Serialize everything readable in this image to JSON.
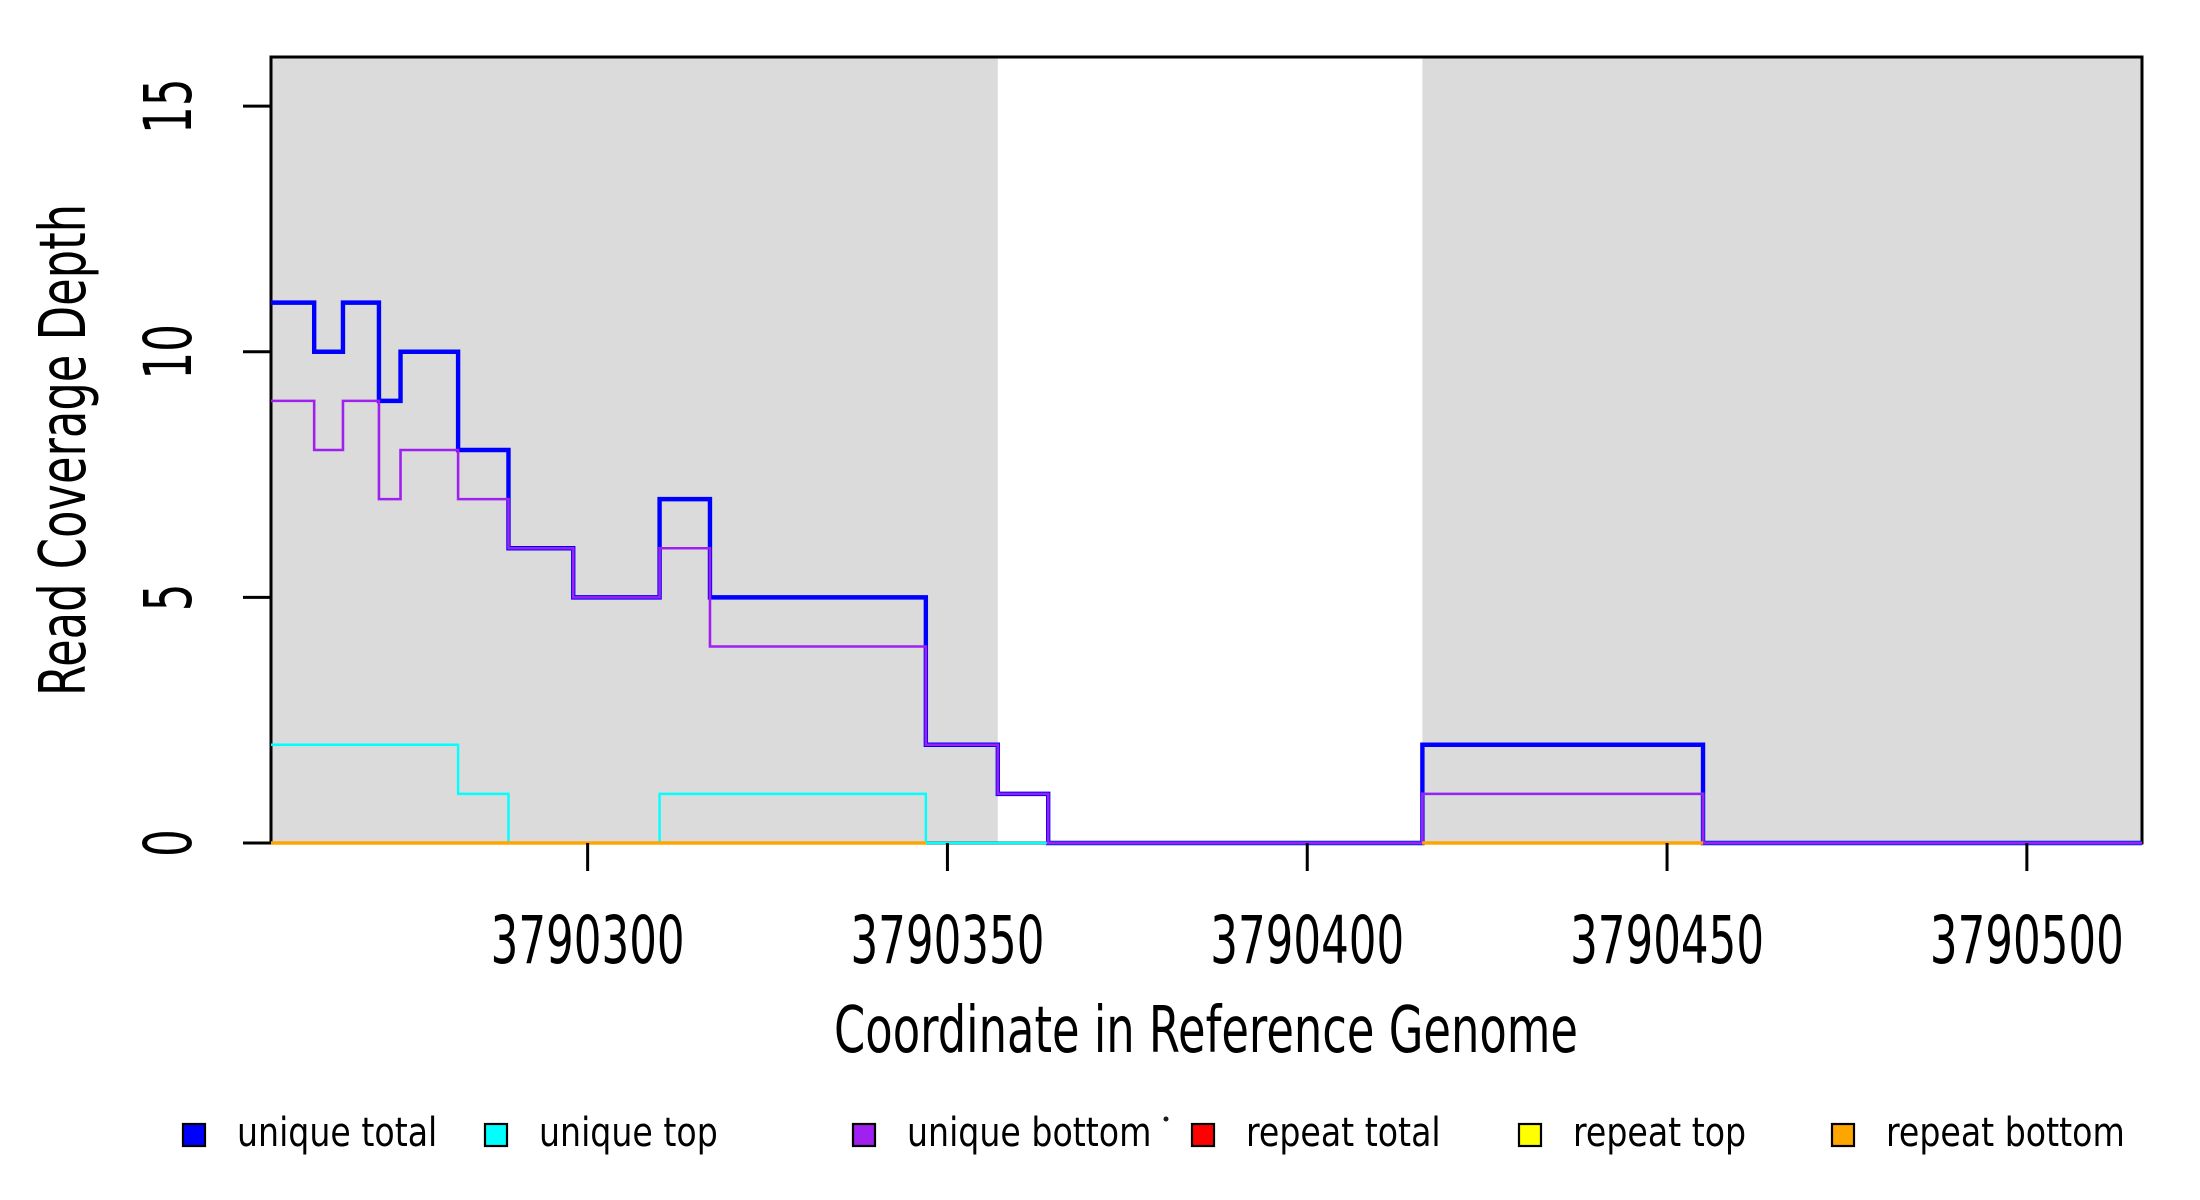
{
  "figure": {
    "background": "#FFFFFF",
    "axis_color": "#000000"
  },
  "chart_data": {
    "type": "line",
    "subtype": "step-coverage-plot",
    "title": "",
    "xlabel": "Coordinate in Reference Genome",
    "ylabel": "Read Coverage Depth",
    "xlim": [
      3790256,
      3790516
    ],
    "ylim": [
      0,
      16
    ],
    "grid": false,
    "legend_position": "bottom",
    "x_ticks": [
      {
        "value": 3790300,
        "label": "3790300"
      },
      {
        "value": 3790350,
        "label": "3790350"
      },
      {
        "value": 3790400,
        "label": "3790400"
      },
      {
        "value": 3790450,
        "label": "3790450"
      },
      {
        "value": 3790500,
        "label": "3790500"
      }
    ],
    "y_ticks": [
      {
        "value": 0,
        "label": "0"
      },
      {
        "value": 5,
        "label": "5"
      },
      {
        "value": 10,
        "label": "10"
      },
      {
        "value": 15,
        "label": "15"
      }
    ],
    "shaded_regions": [
      {
        "name": "repeat-region-1",
        "x0": 3790256,
        "x1": 3790357,
        "color": "#DBDBDB"
      },
      {
        "name": "repeat-region-2",
        "x0": 3790416,
        "x1": 3790516,
        "color": "#DBDBDB"
      }
    ],
    "series": [
      {
        "name": "unique total",
        "color": "#0000FF",
        "line_width": 4.4,
        "segments": [
          {
            "boundaries": [
              3790256,
              3790262,
              3790266,
              3790271,
              3790274,
              3790282,
              3790289,
              3790298,
              3790310,
              3790317,
              3790347,
              3790357,
              3790364,
              3790416,
              3790455,
              3790516
            ],
            "values": [
              11,
              10,
              11,
              9,
              10,
              8,
              6,
              5,
              7,
              5,
              2,
              1,
              0,
              2,
              0
            ]
          }
        ]
      },
      {
        "name": "unique top",
        "color": "#00FFFF",
        "line_width": 2.4,
        "segments": [
          {
            "boundaries": [
              3790256,
              3790262,
              3790266,
              3790271,
              3790274,
              3790282,
              3790289,
              3790298,
              3790310,
              3790317,
              3790347,
              3790357,
              3790364,
              3790416,
              3790455,
              3790516
            ],
            "values": [
              2,
              2,
              2,
              2,
              2,
              1,
              0,
              0,
              1,
              1,
              0,
              0,
              0,
              1,
              0
            ]
          }
        ]
      },
      {
        "name": "unique bottom",
        "color": "#A020F0",
        "line_width": 2.6,
        "segments": [
          {
            "boundaries": [
              3790256,
              3790262,
              3790266,
              3790271,
              3790274,
              3790282,
              3790289,
              3790298,
              3790310,
              3790317,
              3790347,
              3790357,
              3790364,
              3790416,
              3790455,
              3790516
            ],
            "values": [
              9,
              8,
              9,
              7,
              8,
              7,
              6,
              5,
              6,
              4,
              2,
              1,
              0,
              1,
              0
            ]
          }
        ]
      },
      {
        "name": "repeat total",
        "color": "#FF0000",
        "line_width": 2.5,
        "segments": [
          {
            "boundaries": [
              3790256,
              3790347
            ],
            "values": [
              0
            ]
          },
          {
            "boundaries": [
              3790416,
              3790455
            ],
            "values": [
              0
            ]
          }
        ]
      },
      {
        "name": "repeat top",
        "color": "#FFFF00",
        "line_width": 2.5,
        "segments": [
          {
            "boundaries": [
              3790256,
              3790347
            ],
            "values": [
              0
            ]
          },
          {
            "boundaries": [
              3790416,
              3790455
            ],
            "values": [
              0
            ]
          }
        ]
      },
      {
        "name": "repeat bottom",
        "color": "#FFA500",
        "line_width": 3.4,
        "segments": [
          {
            "boundaries": [
              3790256,
              3790347
            ],
            "values": [
              0
            ]
          },
          {
            "boundaries": [
              3790416,
              3790455
            ],
            "values": [
              0
            ]
          }
        ]
      }
    ],
    "legend": {
      "entries": [
        {
          "label": "unique total",
          "color": "#0000FF"
        },
        {
          "label": "unique top",
          "color": "#00FFFF"
        },
        {
          "label": "unique bottom",
          "color": "#A020F0"
        },
        {
          "label": "repeat total",
          "color": "#FF0000"
        },
        {
          "label": "repeat top",
          "color": "#FFFF00"
        },
        {
          "label": "repeat bottom",
          "color": "#FFA500"
        }
      ],
      "stray_mark": "."
    }
  }
}
